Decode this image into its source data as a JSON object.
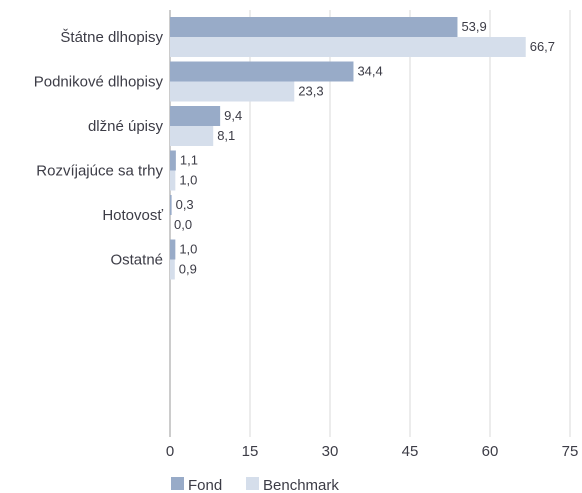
{
  "chart_data": {
    "type": "bar",
    "orientation": "horizontal",
    "categories": [
      "Štátne dlhopisy",
      "Podnikové dlhopisy",
      "dlžné úpisy",
      "Rozvíjajúce sa trhy",
      "Hotovosť",
      "Ostatné"
    ],
    "series": [
      {
        "name": "Fond",
        "values": [
          53.9,
          34.4,
          9.4,
          1.1,
          0.3,
          1.0
        ],
        "labels": [
          "53,9",
          "34,4",
          "9,4",
          "1,1",
          "0,3",
          "1,0"
        ],
        "color": "#98abc8"
      },
      {
        "name": "Benchmark",
        "values": [
          66.7,
          23.3,
          8.1,
          1.0,
          0.0,
          0.9
        ],
        "labels": [
          "66,7",
          "23,3",
          "8,1",
          "1,0",
          "0,0",
          "0,9"
        ],
        "color": "#d5deeb"
      }
    ],
    "xlim": [
      0,
      75
    ],
    "xticks": [
      0,
      15,
      30,
      45,
      60,
      75
    ],
    "xtick_labels": [
      "0",
      "15",
      "30",
      "45",
      "60",
      "75"
    ],
    "grid": true,
    "legend_position": "bottom-left"
  }
}
